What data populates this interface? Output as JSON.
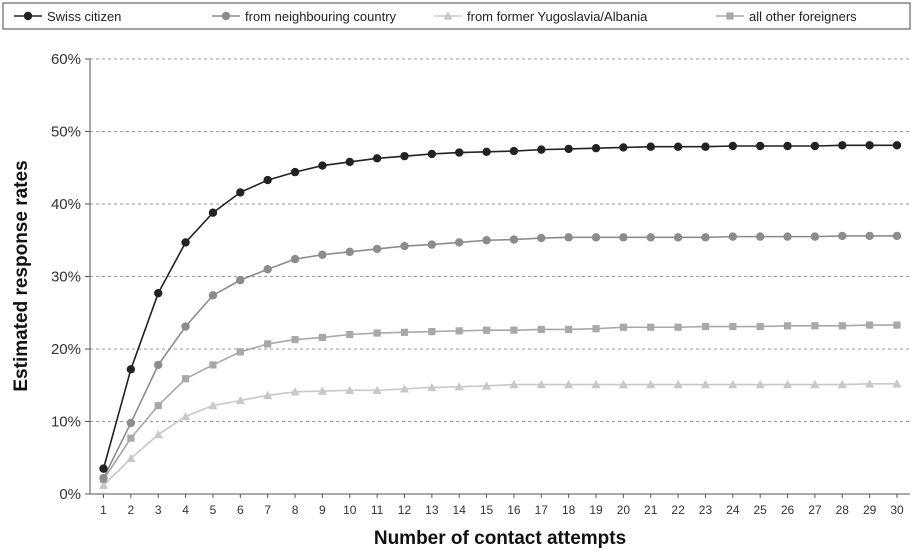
{
  "chart_data": {
    "type": "line",
    "title": "",
    "xlabel": "Number of contact attempts",
    "ylabel": "Estimated response rates",
    "x": [
      1,
      2,
      3,
      4,
      5,
      6,
      7,
      8,
      9,
      10,
      11,
      12,
      13,
      14,
      15,
      16,
      17,
      18,
      19,
      20,
      21,
      22,
      23,
      24,
      25,
      26,
      27,
      28,
      29,
      30
    ],
    "ylim": [
      0,
      60
    ],
    "yticks": [
      0,
      10,
      20,
      30,
      40,
      50,
      60
    ],
    "ytick_suffix": "%",
    "grid": "horizontal dashed",
    "legend_position": "top",
    "series": [
      {
        "name": "Swiss citizen",
        "color": "#222222",
        "marker": "circle",
        "values": [
          3.5,
          17.2,
          27.7,
          34.7,
          38.8,
          41.6,
          43.3,
          44.4,
          45.3,
          45.8,
          46.3,
          46.6,
          46.9,
          47.1,
          47.2,
          47.3,
          47.5,
          47.6,
          47.7,
          47.8,
          47.9,
          47.9,
          47.9,
          48.0,
          48.0,
          48.0,
          48.0,
          48.1,
          48.1,
          48.1
        ]
      },
      {
        "name": "from neighbouring country",
        "color": "#8c8c8c",
        "marker": "circle",
        "values": [
          2.2,
          9.8,
          17.8,
          23.1,
          27.4,
          29.5,
          31.0,
          32.4,
          33.0,
          33.4,
          33.8,
          34.2,
          34.4,
          34.7,
          35.0,
          35.1,
          35.3,
          35.4,
          35.4,
          35.4,
          35.4,
          35.4,
          35.4,
          35.5,
          35.5,
          35.5,
          35.5,
          35.6,
          35.6,
          35.6
        ]
      },
      {
        "name": "from former Yugoslavia/Albania",
        "color": "#c8c8c8",
        "marker": "triangle",
        "values": [
          1.2,
          4.9,
          8.2,
          10.7,
          12.2,
          12.9,
          13.6,
          14.1,
          14.2,
          14.3,
          14.3,
          14.5,
          14.7,
          14.8,
          14.9,
          15.1,
          15.1,
          15.1,
          15.1,
          15.1,
          15.1,
          15.1,
          15.1,
          15.1,
          15.1,
          15.1,
          15.1,
          15.1,
          15.2,
          15.2
        ]
      },
      {
        "name": "all other foreigners",
        "color": "#a8a8a8",
        "marker": "square",
        "values": [
          2.0,
          7.7,
          12.2,
          15.9,
          17.8,
          19.6,
          20.7,
          21.3,
          21.6,
          22.0,
          22.2,
          22.3,
          22.4,
          22.5,
          22.6,
          22.6,
          22.7,
          22.7,
          22.8,
          23.0,
          23.0,
          23.0,
          23.1,
          23.1,
          23.1,
          23.2,
          23.2,
          23.2,
          23.3,
          23.3
        ]
      }
    ]
  }
}
